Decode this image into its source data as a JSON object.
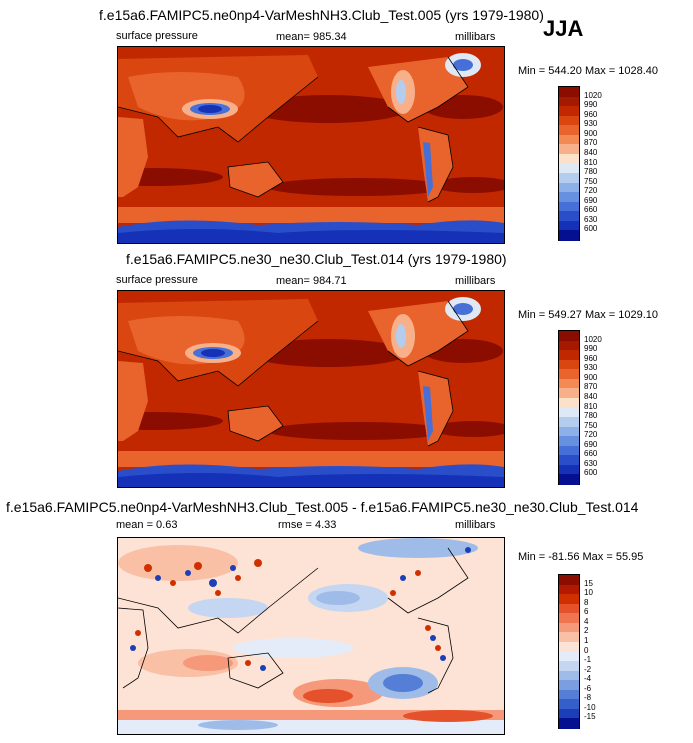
{
  "season": "JJA",
  "panels": [
    {
      "title": "f.e15a6.FAMIPC5.ne0np4-VarMeshNH3.Club_Test.005 (yrs 1979-1980)",
      "left_label": "surface pressure",
      "center_label": "mean= 985.34",
      "right_label": "millibars",
      "minmax": "Min = 544.20 Max = 1028.40",
      "colorbar": {
        "levels": [
          "1020",
          "990",
          "960",
          "930",
          "900",
          "870",
          "840",
          "810",
          "780",
          "750",
          "720",
          "690",
          "660",
          "630",
          "600"
        ],
        "colors": [
          "#8b0d00",
          "#a41a00",
          "#c22800",
          "#d9460f",
          "#e8642c",
          "#f28a54",
          "#f7b08a",
          "#fbe1c9",
          "#dfe9f5",
          "#b4cdef",
          "#8db0e9",
          "#6791e0",
          "#4670d7",
          "#2a4ec9",
          "#1431b7",
          "#04108f"
        ]
      }
    },
    {
      "title": "f.e15a6.FAMIPC5.ne30_ne30.Club_Test.014 (yrs 1979-1980)",
      "left_label": "surface pressure",
      "center_label": "mean= 984.71",
      "right_label": "millibars",
      "minmax": "Min = 549.27 Max = 1029.10",
      "colorbar": {
        "levels": [
          "1020",
          "990",
          "960",
          "930",
          "900",
          "870",
          "840",
          "810",
          "780",
          "750",
          "720",
          "690",
          "660",
          "630",
          "600"
        ],
        "colors": [
          "#8b0d00",
          "#a41a00",
          "#c22800",
          "#d9460f",
          "#e8642c",
          "#f28a54",
          "#f7b08a",
          "#fbe1c9",
          "#dfe9f5",
          "#b4cdef",
          "#8db0e9",
          "#6791e0",
          "#4670d7",
          "#2a4ec9",
          "#1431b7",
          "#04108f"
        ]
      }
    },
    {
      "title": "f.e15a6.FAMIPC5.ne0np4-VarMeshNH3.Club_Test.005 - f.e15a6.FAMIPC5.ne30_ne30.Club_Test.014",
      "left_label": "mean =   0.63",
      "center_label": "rmse =   4.33",
      "right_label": "millibars",
      "minmax": "Min = -81.56 Max =  55.95",
      "colorbar": {
        "levels": [
          "15",
          "10",
          "8",
          "6",
          "4",
          "2",
          "1",
          "0",
          "-1",
          "-2",
          "-4",
          "-6",
          "-8",
          "-10",
          "-15"
        ],
        "colors": [
          "#8b0d00",
          "#b31800",
          "#d03000",
          "#e4512a",
          "#ef7550",
          "#f5997a",
          "#fac0a6",
          "#fde3d5",
          "#e3ecf8",
          "#c4d6f1",
          "#9fbce9",
          "#7a9ee0",
          "#557fd6",
          "#355fcb",
          "#1c3fb8",
          "#04108f"
        ]
      }
    }
  ]
}
